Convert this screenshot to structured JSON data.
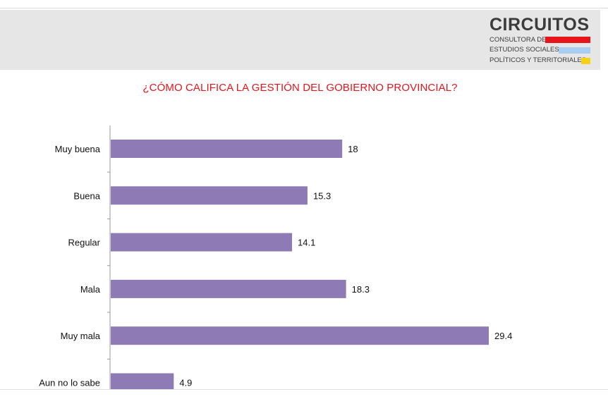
{
  "logo": {
    "name": "CIRCUITOS",
    "lines": [
      "CONSULTORA DE",
      "ESTUDIOS SOCIALES,",
      "POLÍTICOS Y TERRITORIALES"
    ],
    "bar_colors": [
      "#e8141b",
      "#a9cdf0",
      "#f7d116"
    ]
  },
  "colors": {
    "bar": "#8e7bb5",
    "title": "#e8141b",
    "axis": "#9a9a9a"
  },
  "chart_data": {
    "type": "bar",
    "orientation": "horizontal",
    "title": "¿CÓMO CALIFICA LA GESTIÓN DEL GOBIERNO PROVINCIAL?",
    "categories": [
      "Muy buena",
      "Buena",
      "Regular",
      "Mala",
      "Muy mala",
      "Aun no lo sabe"
    ],
    "values": [
      18,
      15.3,
      14.1,
      18.3,
      29.4,
      4.9
    ],
    "value_labels": [
      "18",
      "15.3",
      "14.1",
      "18.3",
      "29.4",
      "4.9"
    ],
    "xlim": [
      0,
      29.4
    ],
    "grid": false,
    "legend": "none"
  }
}
